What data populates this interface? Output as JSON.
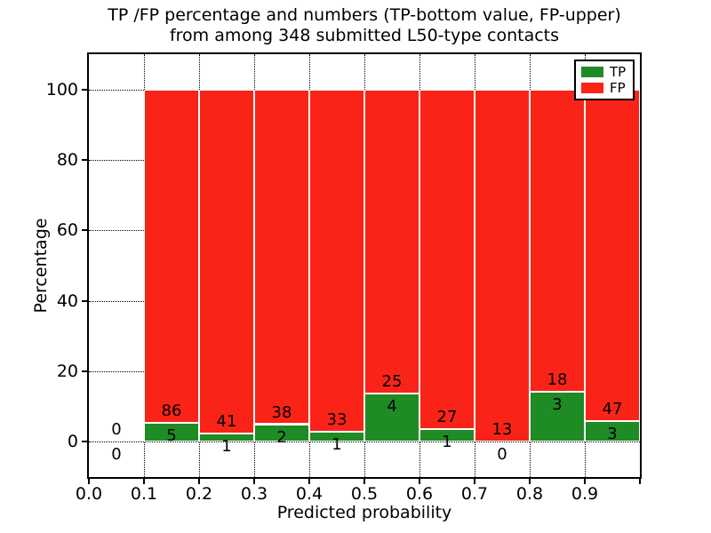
{
  "chart_data": {
    "type": "bar",
    "stacked": true,
    "title_line1": "TP /FP percentage and numbers (TP-bottom value, FP-upper)",
    "title_line2": "from among 348 submitted L50-type contacts",
    "xlabel": "Predicted probability",
    "ylabel": "Percentage",
    "xlim": [
      0.0,
      1.0
    ],
    "ylim": [
      -10,
      110
    ],
    "grid": "dotted",
    "bar_colors": {
      "tp": "#1f8b25",
      "fp": "#fa2318",
      "edge": "#ffffff"
    },
    "legend": {
      "position": "upper right",
      "entries": [
        {
          "label": "TP",
          "color": "#1f8b25"
        },
        {
          "label": "FP",
          "color": "#fa2318"
        }
      ]
    },
    "y_ticks": [
      {
        "pos": 0,
        "label": "0"
      },
      {
        "pos": 20,
        "label": "20"
      },
      {
        "pos": 40,
        "label": "40"
      },
      {
        "pos": 60,
        "label": "60"
      },
      {
        "pos": 80,
        "label": "80"
      },
      {
        "pos": 100,
        "label": "100"
      }
    ],
    "x_ticks": [
      {
        "pos": 0.0,
        "label": "0.0"
      },
      {
        "pos": 0.1,
        "label": "0.1"
      },
      {
        "pos": 0.2,
        "label": "0.2"
      },
      {
        "pos": 0.3,
        "label": "0.3"
      },
      {
        "pos": 0.4,
        "label": "0.4"
      },
      {
        "pos": 0.5,
        "label": "0.5"
      },
      {
        "pos": 0.6,
        "label": "0.6"
      },
      {
        "pos": 0.7,
        "label": "0.7"
      },
      {
        "pos": 0.8,
        "label": "0.8"
      },
      {
        "pos": 0.9,
        "label": "0.9"
      },
      {
        "pos": 1.0,
        "label": ""
      }
    ],
    "bins": [
      {
        "x_start": 0.0,
        "x_end": 0.1,
        "tp_count": 0,
        "fp_count": 0
      },
      {
        "x_start": 0.1,
        "x_end": 0.2,
        "tp_count": 5,
        "fp_count": 86
      },
      {
        "x_start": 0.2,
        "x_end": 0.3,
        "tp_count": 1,
        "fp_count": 41
      },
      {
        "x_start": 0.3,
        "x_end": 0.4,
        "tp_count": 2,
        "fp_count": 38
      },
      {
        "x_start": 0.4,
        "x_end": 0.5,
        "tp_count": 1,
        "fp_count": 33
      },
      {
        "x_start": 0.5,
        "x_end": 0.6,
        "tp_count": 4,
        "fp_count": 25
      },
      {
        "x_start": 0.6,
        "x_end": 0.7,
        "tp_count": 1,
        "fp_count": 27
      },
      {
        "x_start": 0.7,
        "x_end": 0.8,
        "tp_count": 0,
        "fp_count": 13
      },
      {
        "x_start": 0.8,
        "x_end": 0.9,
        "tp_count": 3,
        "fp_count": 18
      },
      {
        "x_start": 0.9,
        "x_end": 1.0,
        "tp_count": 3,
        "fp_count": 47
      }
    ]
  }
}
